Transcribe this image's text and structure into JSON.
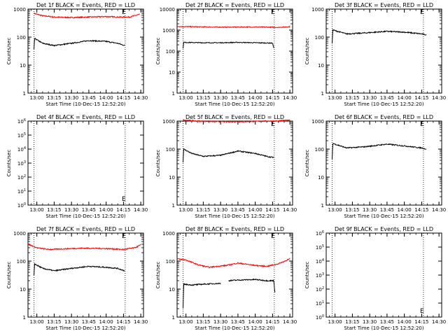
{
  "figure": {
    "x_tick_labels": [
      "13:00",
      "13:15",
      "13:30",
      "13:45",
      "14:00",
      "14:15",
      "14:30"
    ],
    "xlabel": "Start Time (10-Dec-15 12:52:20)",
    "ylabel": "Counts/sec",
    "colors": {
      "events": "#000000",
      "lld": "#ff0000"
    }
  },
  "chart_data": [
    {
      "type": "line",
      "panel": 1,
      "title": "Det 1f BLACK = Events, RED = LLD",
      "y_scale": "log",
      "ylim": [
        1,
        1000
      ],
      "y_tick_labels": [
        "1",
        "10",
        "100",
        "1000"
      ],
      "xlim": [
        "12:52:20",
        "14:32:20"
      ],
      "vlines": [
        "12:57:30",
        "14:16:30"
      ],
      "marker_label": "E",
      "series": [
        {
          "color": "red",
          "x": [
            "12:57:30",
            "13:05",
            "13:15",
            "13:30",
            "13:45",
            "14:00",
            "14:10",
            "14:20",
            "14:29"
          ],
          "y": [
            700,
            580,
            520,
            500,
            520,
            540,
            520,
            520,
            650
          ]
        },
        {
          "color": "black",
          "x": [
            "12:57:30",
            "12:58",
            "13:05",
            "13:15",
            "13:30",
            "13:45",
            "14:00",
            "14:10",
            "14:16"
          ],
          "y": [
            35,
            90,
            60,
            50,
            60,
            75,
            70,
            60,
            50
          ]
        }
      ]
    },
    {
      "type": "line",
      "panel": 2,
      "title": "Det 2f BLACK = Events, RED = LLD",
      "y_scale": "log",
      "ylim": [
        1,
        10000
      ],
      "y_tick_labels": [
        "1",
        "10",
        "100",
        "1000",
        "10000"
      ],
      "xlim": [
        "12:52:20",
        "14:32:20"
      ],
      "vlines": [
        "12:57:30",
        "14:16:30"
      ],
      "marker_label": "E",
      "series": [
        {
          "color": "red",
          "x": [
            "12:52:30",
            "13:05",
            "13:20",
            "13:35",
            "13:50",
            "14:05",
            "14:20",
            "14:30"
          ],
          "y": [
            1500,
            1450,
            1400,
            1380,
            1400,
            1400,
            1350,
            1450
          ]
        },
        {
          "color": "black",
          "x": [
            "12:57:30",
            "12:58",
            "13:15",
            "13:30",
            "13:45",
            "14:00",
            "14:15",
            "14:16"
          ],
          "y": [
            140,
            260,
            250,
            250,
            260,
            250,
            240,
            140
          ]
        }
      ]
    },
    {
      "type": "line",
      "panel": 3,
      "title": "Det 3f BLACK = Events, RED = LLD",
      "y_scale": "log",
      "ylim": [
        1,
        1000
      ],
      "y_tick_labels": [
        "1",
        "10",
        "100",
        "1000"
      ],
      "xlim": [
        "12:52:20",
        "14:32:20"
      ],
      "vlines": [
        "12:57:30",
        "14:16:30"
      ],
      "marker_label": "E",
      "series": [
        {
          "color": "black",
          "x": [
            "12:57:30",
            "12:58",
            "13:10",
            "13:25",
            "13:45",
            "14:00",
            "14:15",
            "14:19"
          ],
          "y": [
            60,
            180,
            130,
            140,
            160,
            150,
            130,
            120
          ]
        }
      ]
    },
    {
      "type": "line",
      "panel": 4,
      "title": "Det 4f BLACK = Events, RED = LLD",
      "y_scale": "log",
      "ylim": [
        1,
        1000000
      ],
      "y_tick_labels": [
        "10^0",
        "10^1",
        "10^2",
        "10^3",
        "10^4",
        "10^5",
        "10^6"
      ],
      "xlim": [
        "12:52:20",
        "14:32:20"
      ],
      "vlines": [
        "12:57:30",
        "14:16:30"
      ],
      "marker_label": "E",
      "series": []
    },
    {
      "type": "line",
      "panel": 5,
      "title": "Det 5f BLACK = Events, RED = LLD",
      "y_scale": "log",
      "ylim": [
        1,
        1000
      ],
      "y_tick_labels": [
        "1",
        "10",
        "100",
        "1000"
      ],
      "xlim": [
        "12:52:20",
        "14:32:20"
      ],
      "vlines": [
        "12:57:30",
        "14:16:30"
      ],
      "marker_label": "E",
      "series": [
        {
          "color": "red",
          "x": [
            "12:57:30",
            "13:10",
            "13:30",
            "13:50",
            "14:10",
            "14:20",
            "14:30"
          ],
          "y": [
            1100,
            1000,
            950,
            960,
            1000,
            1000,
            1100
          ]
        },
        {
          "color": "black",
          "x": [
            "12:57:30",
            "12:58",
            "13:05",
            "13:15",
            "13:30",
            "13:45",
            "14:00",
            "14:10",
            "14:16"
          ],
          "y": [
            35,
            100,
            70,
            55,
            60,
            85,
            70,
            55,
            50
          ]
        }
      ]
    },
    {
      "type": "line",
      "panel": 6,
      "title": "Det 6f BLACK = Events, RED = LLD",
      "y_scale": "log",
      "ylim": [
        1,
        1000
      ],
      "y_tick_labels": [
        "1",
        "10",
        "100",
        "1000"
      ],
      "xlim": [
        "12:52:20",
        "14:32:20"
      ],
      "vlines": [
        "12:57:30",
        "14:16:30"
      ],
      "marker_label": "E",
      "series": [
        {
          "color": "black",
          "x": [
            "12:57:30",
            "12:58",
            "13:10",
            "13:25",
            "13:45",
            "14:00",
            "14:15",
            "14:19"
          ],
          "y": [
            40,
            160,
            110,
            120,
            150,
            130,
            110,
            100
          ]
        }
      ]
    },
    {
      "type": "line",
      "panel": 7,
      "title": "Det 7f BLACK = Events, RED = LLD",
      "y_scale": "log",
      "ylim": [
        1,
        1000
      ],
      "y_tick_labels": [
        "1",
        "10",
        "100",
        "1000"
      ],
      "xlim": [
        "12:52:20",
        "14:32:20"
      ],
      "vlines": [
        "12:57:30",
        "14:16:30"
      ],
      "marker_label": "E",
      "series": [
        {
          "color": "red",
          "x": [
            "12:52:30",
            "13:00",
            "13:10",
            "13:20",
            "13:40",
            "14:00",
            "14:15",
            "14:25",
            "14:30"
          ],
          "y": [
            400,
            300,
            260,
            270,
            290,
            280,
            260,
            300,
            380
          ]
        },
        {
          "color": "black",
          "x": [
            "12:57:30",
            "12:58",
            "13:05",
            "13:15",
            "13:30",
            "13:45",
            "14:00",
            "14:10",
            "14:16"
          ],
          "y": [
            30,
            80,
            55,
            45,
            55,
            65,
            60,
            55,
            45
          ]
        }
      ]
    },
    {
      "type": "line",
      "panel": 8,
      "title": "Det 8f BLACK = Events, RED = LLD",
      "y_scale": "log",
      "ylim": [
        1,
        1000
      ],
      "y_tick_labels": [
        "1",
        "10",
        "100",
        "1000"
      ],
      "xlim": [
        "12:52:20",
        "14:32:20"
      ],
      "vlines": [
        "12:57:30",
        "14:16:30"
      ],
      "marker_label": "E",
      "series": [
        {
          "color": "red",
          "x": [
            "12:52:30",
            "13:00",
            "13:10",
            "13:20",
            "13:35",
            "13:45",
            "14:00",
            "14:10",
            "14:20",
            "14:30"
          ],
          "y": [
            120,
            110,
            75,
            60,
            70,
            85,
            70,
            65,
            80,
            120
          ]
        },
        {
          "color": "black",
          "x": [
            "12:57:30",
            "12:58",
            "13:05",
            "13:15",
            "13:30"
          ],
          "y": [
            2,
            15,
            14,
            15,
            16
          ]
        },
        {
          "color": "black",
          "x": [
            "13:37",
            "13:45",
            "14:00",
            "14:10",
            "14:16",
            "14:17"
          ],
          "y": [
            20,
            21,
            22,
            20,
            20,
            8
          ]
        }
      ]
    },
    {
      "type": "line",
      "panel": 9,
      "title": "Det 9f BLACK = Events, RED = LLD",
      "y_scale": "log",
      "ylim": [
        1,
        1000000
      ],
      "y_tick_labels": [
        "10^0",
        "10^1",
        "10^2",
        "10^3",
        "10^4",
        "10^5",
        "10^6"
      ],
      "xlim": [
        "12:52:20",
        "14:32:20"
      ],
      "vlines": [
        "12:57:30",
        "14:16:30"
      ],
      "marker_label": "E",
      "series": []
    }
  ]
}
